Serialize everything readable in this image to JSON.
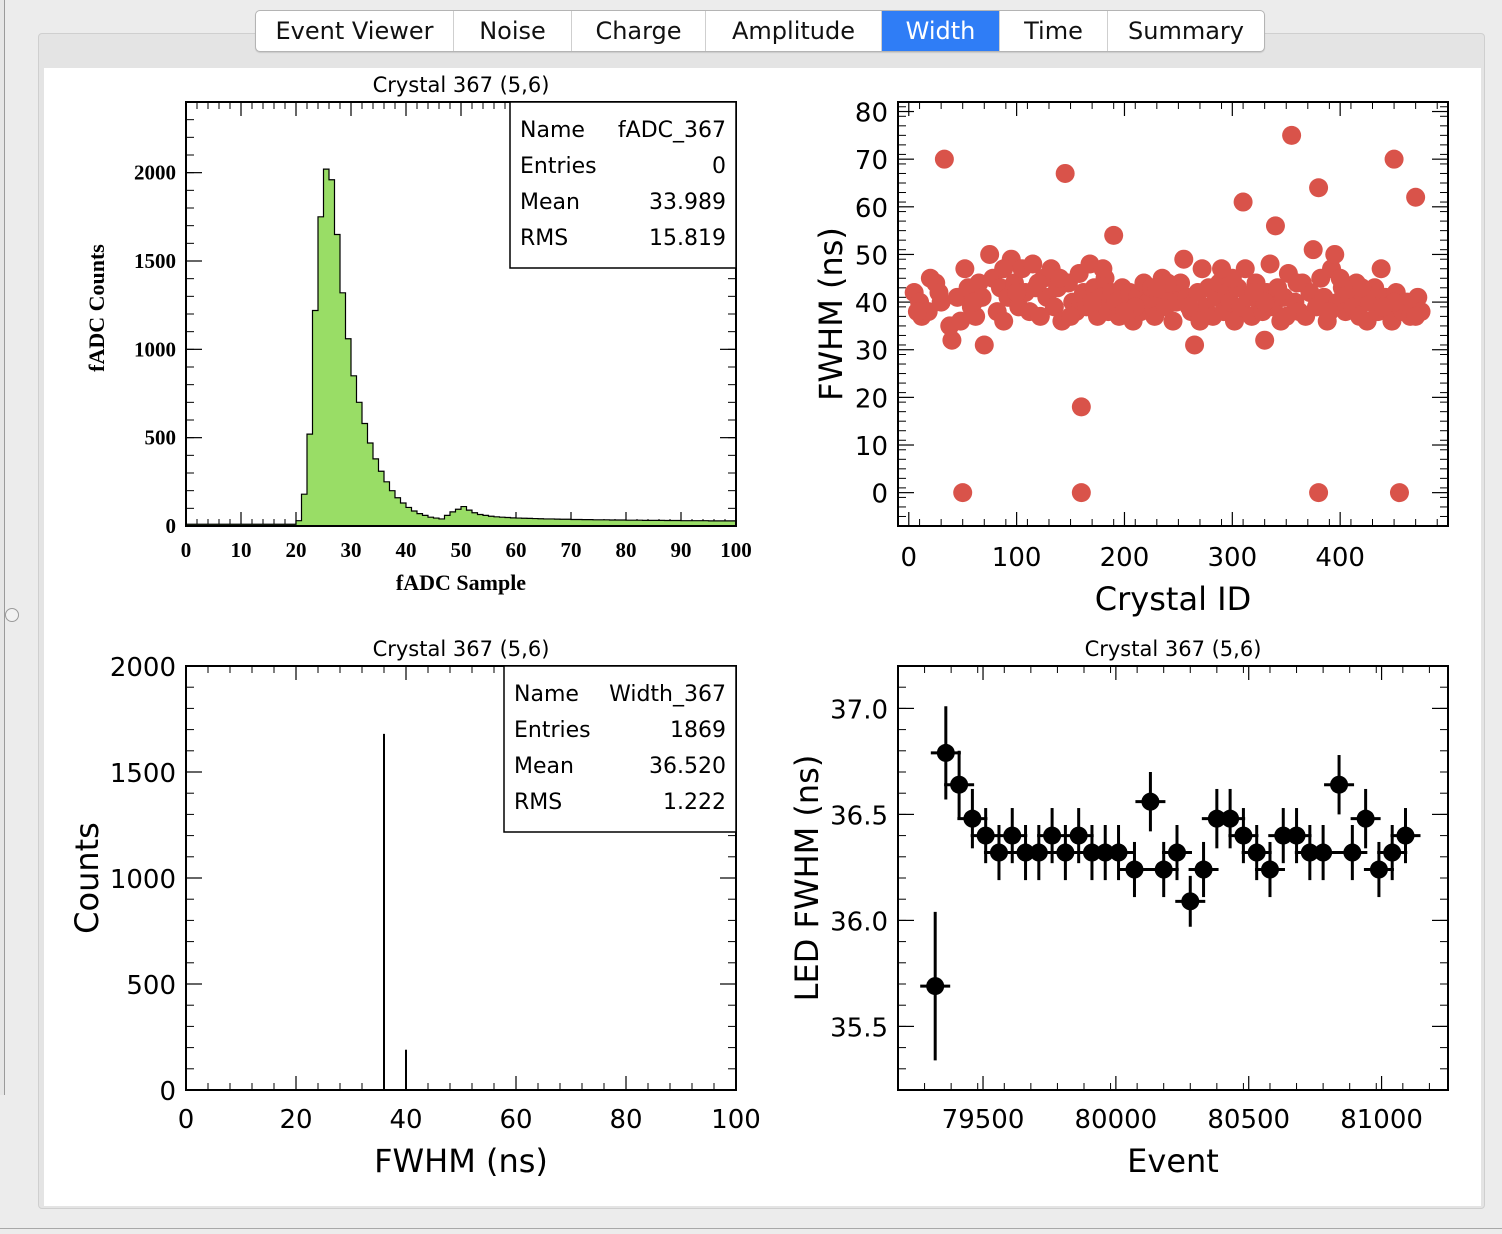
{
  "tabs": [
    {
      "label": "Event Viewer",
      "active": false
    },
    {
      "label": "Noise",
      "active": false
    },
    {
      "label": "Charge",
      "active": false
    },
    {
      "label": "Amplitude",
      "active": false
    },
    {
      "label": "Width",
      "active": true
    },
    {
      "label": "Time",
      "active": false
    },
    {
      "label": "Summary",
      "active": false
    }
  ],
  "colors": {
    "accent": "#2f7df6",
    "hist_fill": "#99dd66",
    "scatter": "#d9534a",
    "points": "#000000"
  },
  "chart_data": [
    {
      "type": "bar",
      "title": "Crystal 367 (5,6)",
      "xlabel": "fADC Sample",
      "ylabel": "fADC Counts",
      "xlim": [
        0,
        100
      ],
      "ylim": [
        0,
        2400
      ],
      "x_ticks": [
        0,
        10,
        20,
        30,
        40,
        50,
        60,
        70,
        80,
        90,
        100
      ],
      "y_ticks": [
        0,
        500,
        1000,
        1500,
        2000
      ],
      "bin_start": 0,
      "bin_width": 1,
      "values": [
        10,
        10,
        10,
        10,
        10,
        10,
        10,
        10,
        10,
        10,
        10,
        10,
        10,
        10,
        10,
        10,
        10,
        10,
        10,
        10,
        30,
        180,
        520,
        1220,
        1750,
        2020,
        1960,
        1650,
        1320,
        1060,
        850,
        700,
        580,
        470,
        380,
        310,
        250,
        200,
        160,
        130,
        105,
        85,
        70,
        60,
        50,
        45,
        40,
        60,
        80,
        95,
        110,
        90,
        75,
        65,
        60,
        55,
        52,
        50,
        48,
        46,
        45,
        44,
        43,
        42,
        41,
        40,
        40,
        39,
        38,
        38,
        37,
        37,
        36,
        36,
        35,
        35,
        35,
        34,
        34,
        34,
        33,
        33,
        33,
        32,
        32,
        32,
        32,
        31,
        31,
        31,
        30,
        30,
        30,
        30,
        30,
        29,
        29,
        29,
        29,
        29
      ],
      "stats": {
        "labels": [
          "Name",
          "Entries",
          "Mean",
          "RMS"
        ],
        "values": [
          "fADC_367",
          "0",
          "33.989",
          "15.819"
        ]
      }
    },
    {
      "type": "scatter",
      "xlabel": "Crystal ID",
      "ylabel": "FWHM (ns)",
      "xlim": [
        -10,
        500
      ],
      "ylim": [
        -7,
        82
      ],
      "x_ticks": [
        0,
        100,
        200,
        300,
        400
      ],
      "y_ticks": [
        0,
        10,
        20,
        30,
        40,
        50,
        60,
        70,
        80
      ],
      "points": [
        [
          33,
          70
        ],
        [
          145,
          67
        ],
        [
          355,
          75
        ],
        [
          450,
          70
        ],
        [
          380,
          64
        ],
        [
          470,
          62
        ],
        [
          310,
          61
        ],
        [
          340,
          56
        ],
        [
          190,
          54
        ],
        [
          160,
          18
        ],
        [
          50,
          0
        ],
        [
          160,
          0
        ],
        [
          380,
          0
        ],
        [
          455,
          0
        ],
        [
          265,
          31
        ],
        [
          330,
          32
        ],
        [
          70,
          31
        ],
        [
          40,
          32
        ],
        [
          5,
          42
        ],
        [
          10,
          40
        ],
        [
          12,
          37
        ],
        [
          18,
          38
        ],
        [
          25,
          44
        ],
        [
          30,
          40
        ],
        [
          38,
          35
        ],
        [
          45,
          41
        ],
        [
          52,
          47
        ],
        [
          55,
          43
        ],
        [
          58,
          39
        ],
        [
          62,
          37
        ],
        [
          65,
          44
        ],
        [
          68,
          41
        ],
        [
          75,
          50
        ],
        [
          78,
          45
        ],
        [
          82,
          38
        ],
        [
          85,
          43
        ],
        [
          88,
          36
        ],
        [
          92,
          41
        ],
        [
          95,
          49
        ],
        [
          98,
          44
        ],
        [
          102,
          39
        ],
        [
          105,
          47
        ],
        [
          108,
          42
        ],
        [
          112,
          38
        ],
        [
          115,
          48
        ],
        [
          118,
          43
        ],
        [
          122,
          37
        ],
        [
          125,
          45
        ],
        [
          128,
          41
        ],
        [
          132,
          47
        ],
        [
          135,
          39
        ],
        [
          138,
          43
        ],
        [
          142,
          36
        ],
        [
          148,
          44
        ],
        [
          152,
          40
        ],
        [
          155,
          38
        ],
        [
          158,
          46
        ],
        [
          162,
          42
        ],
        [
          165,
          39
        ],
        [
          168,
          48
        ],
        [
          172,
          43
        ],
        [
          175,
          37
        ],
        [
          178,
          41
        ],
        [
          182,
          45
        ],
        [
          185,
          38
        ],
        [
          188,
          42
        ],
        [
          192,
          40
        ],
        [
          195,
          37
        ],
        [
          198,
          43
        ],
        [
          202,
          39
        ],
        [
          205,
          42
        ],
        [
          208,
          36
        ],
        [
          212,
          41
        ],
        [
          215,
          38
        ],
        [
          218,
          44
        ],
        [
          222,
          40
        ],
        [
          225,
          43
        ],
        [
          228,
          37
        ],
        [
          232,
          41
        ],
        [
          235,
          45
        ],
        [
          238,
          39
        ],
        [
          242,
          42
        ],
        [
          245,
          36
        ],
        [
          248,
          40
        ],
        [
          252,
          44
        ],
        [
          255,
          49
        ],
        [
          258,
          41
        ],
        [
          262,
          38
        ],
        [
          268,
          42
        ],
        [
          272,
          47
        ],
        [
          275,
          39
        ],
        [
          278,
          43
        ],
        [
          282,
          37
        ],
        [
          285,
          41
        ],
        [
          288,
          44
        ],
        [
          292,
          38
        ],
        [
          295,
          42
        ],
        [
          298,
          40
        ],
        [
          302,
          36
        ],
        [
          305,
          43
        ],
        [
          308,
          39
        ],
        [
          312,
          47
        ],
        [
          315,
          41
        ],
        [
          318,
          37
        ],
        [
          322,
          44
        ],
        [
          325,
          40
        ],
        [
          328,
          38
        ],
        [
          332,
          42
        ],
        [
          335,
          48
        ],
        [
          338,
          39
        ],
        [
          342,
          43
        ],
        [
          345,
          36
        ],
        [
          348,
          41
        ],
        [
          352,
          46
        ],
        [
          358,
          40
        ],
        [
          362,
          38
        ],
        [
          365,
          44
        ],
        [
          368,
          37
        ],
        [
          372,
          42
        ],
        [
          375,
          51
        ],
        [
          378,
          39
        ],
        [
          382,
          45
        ],
        [
          385,
          41
        ],
        [
          388,
          36
        ],
        [
          392,
          47
        ],
        [
          395,
          50
        ],
        [
          398,
          40
        ],
        [
          402,
          43
        ],
        [
          405,
          38
        ],
        [
          408,
          42
        ],
        [
          412,
          39
        ],
        [
          415,
          44
        ],
        [
          418,
          37
        ],
        [
          422,
          41
        ],
        [
          425,
          36
        ],
        [
          428,
          40
        ],
        [
          432,
          43
        ],
        [
          435,
          38
        ],
        [
          438,
          47
        ],
        [
          442,
          41
        ],
        [
          445,
          39
        ],
        [
          448,
          36
        ],
        [
          452,
          42
        ],
        [
          458,
          38
        ],
        [
          462,
          40
        ],
        [
          465,
          37
        ],
        [
          468,
          39
        ],
        [
          472,
          41
        ],
        [
          475,
          38
        ],
        [
          20,
          45
        ],
        [
          48,
          36
        ],
        [
          88,
          47
        ],
        [
          120,
          44
        ],
        [
          150,
          37
        ],
        [
          180,
          47
        ],
        [
          210,
          39
        ],
        [
          240,
          44
        ],
        [
          270,
          36
        ],
        [
          300,
          45
        ],
        [
          330,
          40
        ],
        [
          360,
          44
        ],
        [
          390,
          38
        ],
        [
          420,
          43
        ],
        [
          450,
          40
        ],
        [
          8,
          38
        ],
        [
          28,
          42
        ],
        [
          60,
          40
        ],
        [
          100,
          42
        ],
        [
          140,
          45
        ],
        [
          170,
          40
        ],
        [
          200,
          38
        ],
        [
          230,
          43
        ],
        [
          260,
          39
        ],
        [
          290,
          47
        ],
        [
          320,
          42
        ],
        [
          350,
          37
        ],
        [
          400,
          45
        ],
        [
          440,
          39
        ],
        [
          470,
          37
        ]
      ]
    },
    {
      "type": "bar",
      "title": "Crystal 367 (5,6)",
      "xlabel": "FWHM (ns)",
      "ylabel": "Counts",
      "xlim": [
        0,
        100
      ],
      "ylim": [
        0,
        2000
      ],
      "x_ticks": [
        0,
        20,
        40,
        60,
        80,
        100
      ],
      "y_ticks": [
        0,
        500,
        1000,
        1500,
        2000
      ],
      "spikes": [
        [
          36,
          1680
        ],
        [
          40,
          190
        ]
      ],
      "stats": {
        "labels": [
          "Name",
          "Entries",
          "Mean",
          "RMS"
        ],
        "values": [
          "Width_367",
          "1869",
          "36.520",
          "1.222"
        ]
      }
    },
    {
      "type": "scatter",
      "title": "Crystal 367 (5,6)",
      "xlabel": "Event",
      "ylabel": "LED FWHM (ns)",
      "xlim": [
        79180,
        81250
      ],
      "ylim": [
        35.2,
        37.2
      ],
      "x_ticks": [
        79500,
        80000,
        80500,
        81000
      ],
      "y_ticks": [
        35.5,
        36.0,
        36.5,
        37.0
      ],
      "y_tick_labels": [
        "35.5",
        "36.0",
        "36.5",
        "37.0"
      ],
      "points": [
        [
          79320,
          35.69,
          0.35
        ],
        [
          79360,
          36.79,
          0.22
        ],
        [
          79410,
          36.64,
          0.16
        ],
        [
          79460,
          36.48,
          0.14
        ],
        [
          79510,
          36.4,
          0.13
        ],
        [
          79560,
          36.32,
          0.13
        ],
        [
          79610,
          36.4,
          0.13
        ],
        [
          79660,
          36.32,
          0.13
        ],
        [
          79710,
          36.32,
          0.13
        ],
        [
          79760,
          36.4,
          0.13
        ],
        [
          79810,
          36.32,
          0.13
        ],
        [
          79860,
          36.4,
          0.13
        ],
        [
          79910,
          36.32,
          0.13
        ],
        [
          79960,
          36.32,
          0.13
        ],
        [
          80010,
          36.32,
          0.13
        ],
        [
          80070,
          36.24,
          0.13
        ],
        [
          80130,
          36.56,
          0.14
        ],
        [
          80180,
          36.24,
          0.13
        ],
        [
          80230,
          36.32,
          0.13
        ],
        [
          80280,
          36.09,
          0.12
        ],
        [
          80330,
          36.24,
          0.13
        ],
        [
          80380,
          36.48,
          0.14
        ],
        [
          80430,
          36.48,
          0.14
        ],
        [
          80480,
          36.4,
          0.13
        ],
        [
          80530,
          36.32,
          0.13
        ],
        [
          80580,
          36.24,
          0.13
        ],
        [
          80630,
          36.4,
          0.13
        ],
        [
          80680,
          36.4,
          0.13
        ],
        [
          80730,
          36.32,
          0.13
        ],
        [
          80780,
          36.32,
          0.13
        ],
        [
          80840,
          36.64,
          0.14
        ],
        [
          80890,
          36.32,
          0.13
        ],
        [
          80940,
          36.48,
          0.14
        ],
        [
          80990,
          36.24,
          0.13
        ],
        [
          81040,
          36.32,
          0.13
        ],
        [
          81090,
          36.4,
          0.13
        ]
      ]
    }
  ]
}
